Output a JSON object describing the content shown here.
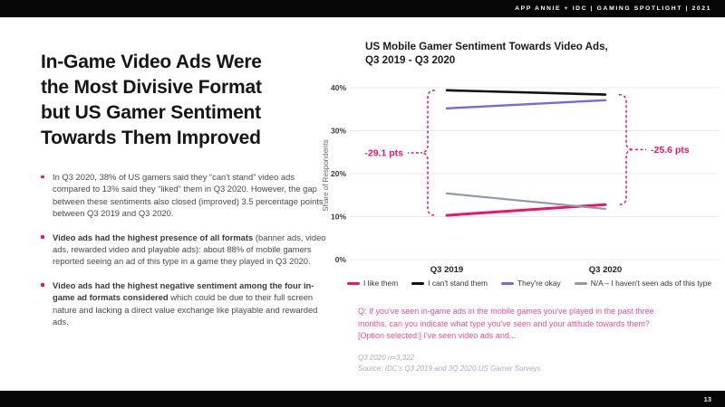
{
  "header": {
    "text": "APP ANNIE + IDC  |  GAMING SPOTLIGHT  | 2021"
  },
  "footer": {
    "page_number": "13"
  },
  "left_panel": {
    "title": "In-Game Video Ads Were\nthe Most Divisive Format\nbut US Gamer Sentiment\nTowards Them Improved",
    "bullets": [
      {
        "bold": "",
        "text": "In Q3 2020, 38% of US gamers said they “can't stand” video ads compared to 13% said they “liked” them in Q3 2020. However, the gap between these sentiments also closed (improved) 3.5 percentage points between Q3 2019 and Q3 2020."
      },
      {
        "bold": "Video ads had the highest presence of all formats",
        "text": " (banner ads, video ads, rewarded video and playable ads): about 88% of mobile gamers reported seeing an ad of this type in a game they played in Q3 2020."
      },
      {
        "bold": "Video ads had the highest negative sentiment among the four in-game ad formats considered",
        "text": " which could be due to their full screen nature and lacking a direct value exchange like playable and rewarded ads."
      }
    ]
  },
  "chart_data": {
    "type": "line",
    "title": "US Mobile Gamer Sentiment Towards Video Ads,\nQ3 2019 - Q3 2020",
    "ylabel": "Share of Respondents",
    "categories": [
      "Q3 2019",
      "Q3 2020"
    ],
    "yticks": [
      0,
      10,
      20,
      30,
      40
    ],
    "ytick_suffix": "%",
    "ylim": [
      0,
      43
    ],
    "grid": true,
    "legend_position": "bottom",
    "series": [
      {
        "name": "I like them",
        "values": [
          10.3,
          12.8
        ],
        "color": "#EC156B",
        "width": 3
      },
      {
        "name": "I can't stand them",
        "values": [
          39.4,
          38.4
        ],
        "color": "#111111",
        "width": 2.6
      },
      {
        "name": "They're okay",
        "values": [
          35.2,
          37.1
        ],
        "color": "#7668E0",
        "width": 2.4
      },
      {
        "name": "N/A – I haven't seen ads of this type",
        "values": [
          15.4,
          11.8
        ],
        "color": "#8E98A8",
        "width": 2.2
      }
    ],
    "annotations": [
      {
        "label": "-29.1 pts",
        "side": "left",
        "category_index": 0,
        "top_value": 39.4,
        "bottom_value": 10.3
      },
      {
        "label": "-25.6 pts",
        "side": "right",
        "category_index": 1,
        "top_value": 38.4,
        "bottom_value": 12.8
      }
    ],
    "annotation_color": "#EC156B"
  },
  "right_panel": {
    "question": "Q: If you've seen in-game ads in the mobile games you've played in the past three\nmonths, can you indicate what type you've seen and your attitude towards them?\n[Option selected:] I've seen video ads and...",
    "question_color": "#EE4D9B",
    "footnote": "Q3 2020 n=3,322\nSource: IDC's Q3 2019 and 3Q 2020 US Gamer Surveys"
  }
}
